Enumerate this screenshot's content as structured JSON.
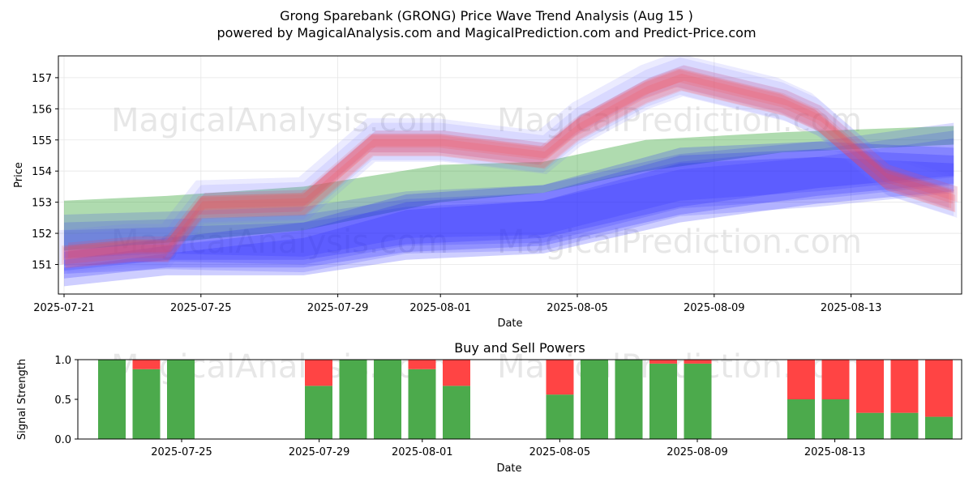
{
  "title_line1": "Grong Sparebank (GRONG) Price Wave Trend Analysis (Aug 15 )",
  "title_line2": "powered by MagicalAnalysis.com and MagicalPrediction.com and Predict-Price.com",
  "watermarks": [
    "MagicalAnalysis.com",
    "MagicalPrediction.com"
  ],
  "colors": {
    "green": "#2ca02c",
    "blue": "#1f1fff",
    "red": "#ff4040",
    "buy": "#4caa4c",
    "sell": "#ff4444"
  },
  "chart_data": [
    {
      "type": "area",
      "xlabel": "Date",
      "ylabel": "Price",
      "x_range": [
        "2025-07-21",
        "2025-08-17"
      ],
      "ylim": [
        150.05,
        157.7
      ],
      "x_ticks": [
        "2025-07-21",
        "2025-07-25",
        "2025-07-29",
        "2025-08-01",
        "2025-08-05",
        "2025-08-09",
        "2025-08-13"
      ],
      "y_ticks": [
        151,
        152,
        153,
        154,
        155,
        156,
        157
      ],
      "grid": true,
      "green_band": {
        "x": [
          "2025-07-21",
          "2025-07-24",
          "2025-07-28",
          "2025-08-01",
          "2025-08-04",
          "2025-08-07",
          "2025-08-11",
          "2025-08-16"
        ],
        "upper": [
          153.05,
          153.2,
          153.5,
          154.2,
          154.3,
          155.0,
          155.25,
          155.45
        ],
        "lower": [
          151.45,
          151.7,
          152.1,
          153.0,
          153.3,
          154.0,
          154.6,
          154.85
        ]
      },
      "blue_bands": [
        {
          "x": [
            "2025-07-21",
            "2025-07-24",
            "2025-07-28",
            "2025-07-31",
            "2025-08-04",
            "2025-08-08",
            "2025-08-12",
            "2025-08-16"
          ],
          "upper": [
            152.35,
            152.45,
            152.6,
            153.1,
            153.3,
            154.3,
            154.7,
            155.3
          ],
          "lower": [
            150.95,
            151.1,
            151.0,
            151.6,
            151.7,
            152.8,
            153.1,
            153.55
          ]
        },
        {
          "x": [
            "2025-07-21",
            "2025-07-24",
            "2025-07-28",
            "2025-07-31",
            "2025-08-04",
            "2025-08-08",
            "2025-08-12",
            "2025-08-16"
          ],
          "upper": [
            151.15,
            151.6,
            152.1,
            153.0,
            153.3,
            154.5,
            154.7,
            154.5
          ],
          "lower": [
            150.55,
            150.9,
            150.9,
            151.4,
            151.6,
            152.6,
            153.2,
            153.6
          ]
        }
      ],
      "waves": {
        "x": [
          "2025-07-21",
          "2025-07-23",
          "2025-07-24",
          "2025-07-25",
          "2025-07-28",
          "2025-07-30",
          "2025-08-01",
          "2025-08-04",
          "2025-08-05",
          "2025-08-07",
          "2025-08-08",
          "2025-08-11",
          "2025-08-12",
          "2025-08-14",
          "2025-08-16"
        ],
        "center": [
          151.3,
          151.5,
          151.5,
          152.9,
          153.0,
          154.9,
          154.9,
          154.5,
          155.4,
          156.6,
          157.0,
          156.2,
          155.7,
          153.8,
          153.1
        ]
      }
    },
    {
      "type": "bar",
      "title": "Buy and Sell Powers",
      "xlabel": "Date",
      "ylabel": "Signal Strength",
      "ylim": [
        0,
        1
      ],
      "y_ticks": [
        "0.0",
        "0.5",
        "1.0"
      ],
      "x_ticks": [
        "2025-07-25",
        "2025-07-29",
        "2025-08-01",
        "2025-08-05",
        "2025-08-09",
        "2025-08-13"
      ],
      "dates": [
        "2025-07-22",
        "2025-07-23",
        "2025-07-24",
        "2025-07-28",
        "2025-07-29",
        "2025-07-30",
        "2025-07-31",
        "2025-08-01",
        "2025-08-04",
        "2025-08-05",
        "2025-08-06",
        "2025-08-07",
        "2025-08-08",
        "2025-08-11",
        "2025-08-12",
        "2025-08-13",
        "2025-08-14",
        "2025-08-15"
      ],
      "series": [
        {
          "name": "buy",
          "values": [
            1.0,
            0.88,
            1.0,
            0.67,
            1.0,
            1.0,
            0.88,
            0.67,
            0.56,
            1.0,
            1.0,
            0.95,
            0.95,
            0.5,
            0.5,
            0.33,
            0.33,
            0.28
          ]
        },
        {
          "name": "sell",
          "values": [
            0.0,
            0.12,
            0.0,
            0.33,
            0.0,
            0.0,
            0.12,
            0.33,
            0.44,
            0.0,
            0.0,
            0.05,
            0.05,
            0.5,
            0.5,
            0.67,
            0.67,
            0.72
          ]
        }
      ]
    }
  ]
}
